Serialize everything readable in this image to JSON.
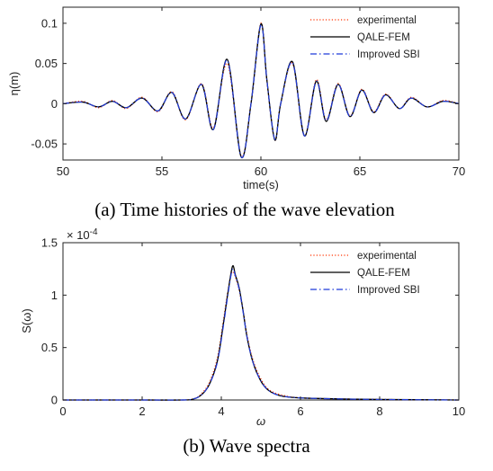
{
  "chart_data": [
    {
      "type": "line",
      "panel": "a",
      "caption": "(a)  Time histories of the wave elevation",
      "xlabel": "time(s)",
      "ylabel": "η(m)",
      "xlim": [
        50,
        70
      ],
      "ylim": [
        -0.07,
        0.12
      ],
      "xticks": [
        "50",
        "55",
        "60",
        "65",
        "70"
      ],
      "yticks": [
        "-0.05",
        "0",
        "0.05",
        "0.1"
      ],
      "xtick_values": [
        50,
        55,
        60,
        65,
        70
      ],
      "ytick_values": [
        -0.05,
        0,
        0.05,
        0.1
      ],
      "legend_position": "top-right",
      "grid": false,
      "x": [
        50,
        51,
        51.8,
        52.5,
        53.2,
        54.0,
        54.8,
        55.5,
        56.2,
        57.0,
        57.6,
        58.3,
        59.0,
        59.5,
        60.0,
        60.3,
        60.7,
        61.0,
        61.6,
        62.2,
        62.8,
        63.3,
        63.9,
        64.5,
        65.1,
        65.7,
        66.3,
        67.0,
        67.6,
        68.4,
        69.2,
        70
      ],
      "series": [
        {
          "name": "experimental",
          "color": "#ff3300",
          "dash": "dotted",
          "values": [
            0.0,
            0.003,
            -0.005,
            0.004,
            -0.006,
            0.008,
            -0.01,
            0.015,
            -0.02,
            0.025,
            -0.03,
            0.05,
            -0.065,
            0.0,
            0.1,
            0.03,
            -0.045,
            0.0,
            0.05,
            -0.04,
            0.03,
            -0.02,
            0.025,
            -0.015,
            0.018,
            -0.01,
            0.012,
            -0.006,
            0.008,
            -0.004,
            0.004,
            0.0
          ]
        },
        {
          "name": "QALE-FEM",
          "color": "#000000",
          "dash": "solid",
          "values": [
            0.0,
            0.002,
            -0.004,
            0.003,
            -0.005,
            0.007,
            -0.009,
            0.014,
            -0.019,
            0.024,
            -0.032,
            0.055,
            -0.066,
            0.0,
            0.099,
            0.03,
            -0.045,
            0.0,
            0.052,
            -0.04,
            0.028,
            -0.022,
            0.024,
            -0.016,
            0.017,
            -0.011,
            0.011,
            -0.006,
            0.007,
            -0.004,
            0.003,
            0.0
          ]
        },
        {
          "name": "Improved SBI",
          "color": "#1f3bd9",
          "dash": "dashdot",
          "values": [
            0.0,
            0.002,
            -0.004,
            0.003,
            -0.005,
            0.007,
            -0.009,
            0.014,
            -0.019,
            0.024,
            -0.032,
            0.054,
            -0.066,
            0.0,
            0.098,
            0.03,
            -0.044,
            0.0,
            0.051,
            -0.04,
            0.028,
            -0.021,
            0.024,
            -0.016,
            0.017,
            -0.011,
            0.011,
            -0.006,
            0.007,
            -0.004,
            0.003,
            0.0
          ]
        }
      ]
    },
    {
      "type": "line",
      "panel": "b",
      "caption": "(b)  Wave spectra",
      "xlabel": "ω",
      "ylabel": "S(ω)",
      "exponent_label": "× 10",
      "exponent": "-4",
      "xlim": [
        0,
        10
      ],
      "ylim": [
        0,
        1.5
      ],
      "xticks": [
        "0",
        "2",
        "4",
        "6",
        "8",
        "10"
      ],
      "yticks": [
        "0",
        "0.5",
        "1",
        "1.5"
      ],
      "xtick_values": [
        0,
        2,
        4,
        6,
        8,
        10
      ],
      "ytick_values": [
        0,
        0.5,
        1,
        1.5
      ],
      "legend_position": "top-right",
      "grid": false,
      "x": [
        0,
        2,
        3.0,
        3.3,
        3.5,
        3.7,
        3.9,
        4.05,
        4.15,
        4.25,
        4.3,
        4.35,
        4.45,
        4.55,
        4.65,
        4.8,
        5.0,
        5.2,
        5.5,
        6.0,
        7.0,
        8.0,
        10
      ],
      "series": [
        {
          "name": "experimental",
          "color": "#ff3300",
          "dash": "dotted",
          "values": [
            0.0,
            0.0,
            0.0,
            0.01,
            0.06,
            0.17,
            0.4,
            0.75,
            1.0,
            1.2,
            1.22,
            1.18,
            1.05,
            0.85,
            0.62,
            0.38,
            0.2,
            0.1,
            0.05,
            0.02,
            0.01,
            0.005,
            0.0
          ]
        },
        {
          "name": "QALE-FEM",
          "color": "#000000",
          "dash": "solid",
          "values": [
            0.0,
            0.0,
            0.0,
            0.01,
            0.05,
            0.15,
            0.37,
            0.72,
            0.98,
            1.22,
            1.28,
            1.2,
            1.07,
            0.85,
            0.6,
            0.36,
            0.18,
            0.09,
            0.04,
            0.02,
            0.01,
            0.005,
            0.0
          ]
        },
        {
          "name": "Improved SBI",
          "color": "#1f3bd9",
          "dash": "dashdot",
          "values": [
            0.0,
            0.0,
            0.0,
            0.01,
            0.05,
            0.15,
            0.36,
            0.7,
            0.96,
            1.2,
            1.25,
            1.19,
            1.06,
            0.84,
            0.6,
            0.36,
            0.18,
            0.09,
            0.04,
            0.02,
            0.01,
            0.005,
            0.0
          ]
        }
      ]
    }
  ]
}
